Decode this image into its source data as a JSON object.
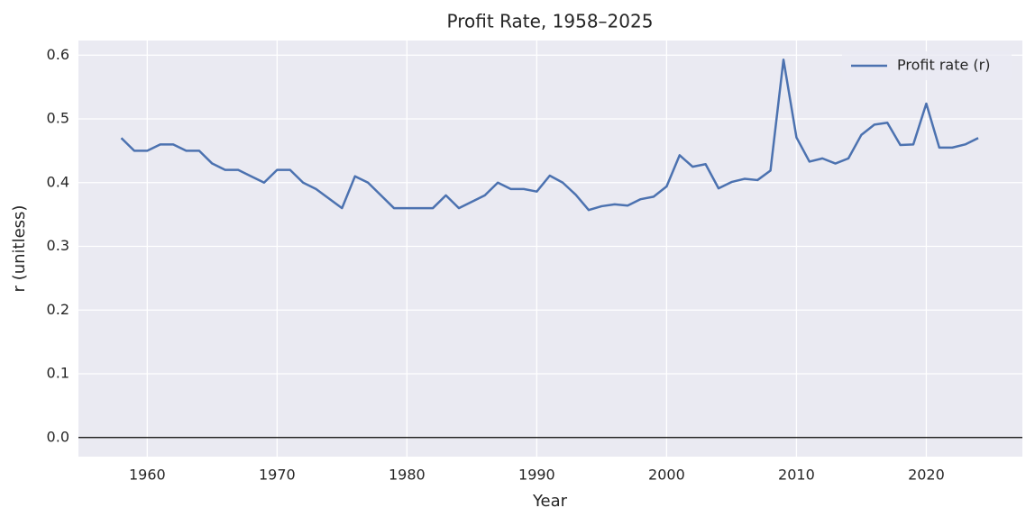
{
  "chart_data": {
    "type": "line",
    "title": "Profit Rate, 1958–2025",
    "x_label": "Year",
    "y_label": "r (unitless)",
    "x": [
      1958,
      1959,
      1960,
      1961,
      1962,
      1963,
      1964,
      1965,
      1966,
      1967,
      1968,
      1969,
      1970,
      1971,
      1972,
      1973,
      1974,
      1975,
      1976,
      1977,
      1978,
      1979,
      1980,
      1981,
      1982,
      1983,
      1984,
      1985,
      1986,
      1987,
      1988,
      1989,
      1990,
      1991,
      1992,
      1993,
      1994,
      1995,
      1996,
      1997,
      1998,
      1999,
      2000,
      2001,
      2002,
      2003,
      2004,
      2005,
      2006,
      2007,
      2008,
      2009,
      2010,
      2011,
      2012,
      2013,
      2014,
      2015,
      2016,
      2017,
      2018,
      2019,
      2020,
      2021,
      2022,
      2023,
      2024
    ],
    "series": [
      {
        "name": "Profit rate (r)",
        "color": "#4c72b0",
        "values": [
          0.47,
          0.45,
          0.45,
          0.46,
          0.46,
          0.45,
          0.45,
          0.43,
          0.42,
          0.42,
          0.41,
          0.4,
          0.42,
          0.42,
          0.4,
          0.39,
          0.375,
          0.36,
          0.41,
          0.4,
          0.38,
          0.36,
          0.36,
          0.36,
          0.36,
          0.38,
          0.36,
          0.37,
          0.38,
          0.4,
          0.39,
          0.39,
          0.386,
          0.411,
          0.4,
          0.381,
          0.357,
          0.363,
          0.366,
          0.364,
          0.374,
          0.378,
          0.394,
          0.443,
          0.425,
          0.429,
          0.391,
          0.401,
          0.406,
          0.404,
          0.419,
          0.593,
          0.471,
          0.433,
          0.438,
          0.43,
          0.438,
          0.475,
          0.491,
          0.494,
          0.459,
          0.46,
          0.524,
          0.455,
          0.455,
          0.46,
          0.47
        ]
      }
    ],
    "xlim": [
      1954.7,
      2027.4
    ],
    "ylim": [
      -0.03,
      0.623
    ],
    "xticks": [
      1960,
      1970,
      1980,
      1990,
      2000,
      2010,
      2020
    ],
    "yticks": [
      {
        "value": 0,
        "label": "0.0"
      },
      0.1,
      0.2,
      0.3,
      0.4,
      0.5,
      0.6
    ],
    "grid": true,
    "axhline": 0,
    "legend": "upper right"
  }
}
